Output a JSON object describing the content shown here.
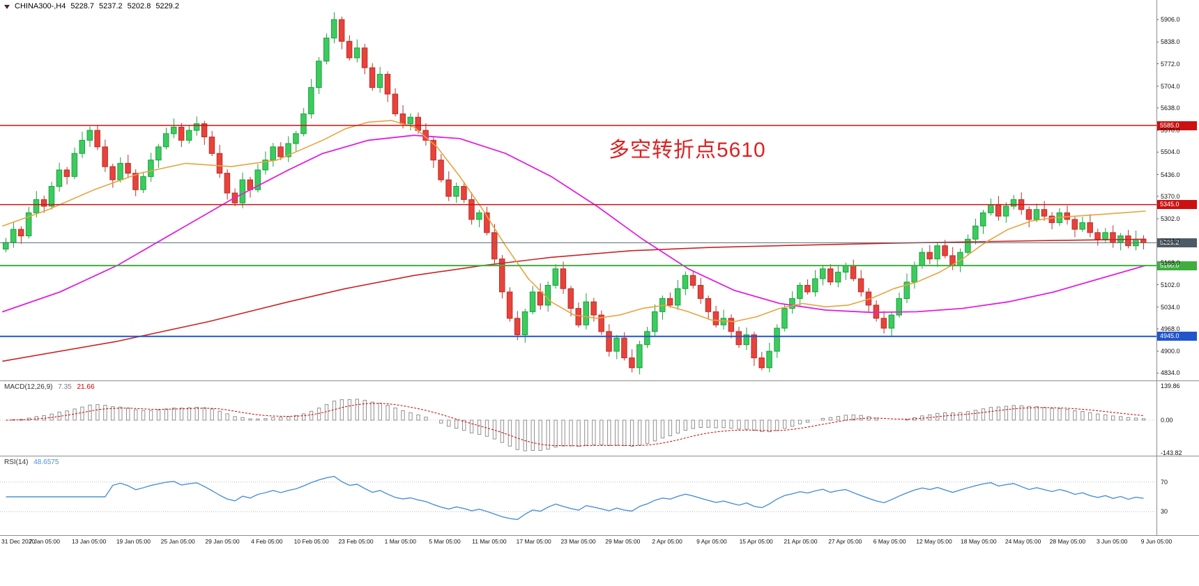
{
  "header": {
    "symbol": "CHINA300-,H4",
    "open": "5228.7",
    "high": "5237.2",
    "low": "5202.8",
    "close": "5229.2"
  },
  "colors": {
    "background": "#ffffff",
    "separator": "#8c8c8c"
  },
  "chart_data": {
    "type": "candlestick",
    "title": "CHINA300-,H4",
    "timeframe": "H4",
    "ohlc_current": {
      "open": 5228.7,
      "high": 5237.2,
      "low": 5202.8,
      "close": 5229.2
    },
    "y_axis": {
      "range": [
        4820,
        5940
      ],
      "ticks": [
        5906.0,
        5838.0,
        5772.0,
        5704.0,
        5638.0,
        5570.0,
        5504.0,
        5436.0,
        5370.0,
        5302.0,
        5234.0,
        5168.0,
        5102.0,
        5034.0,
        4968.0,
        4900.0,
        4834.0
      ]
    },
    "x_axis": {
      "labels": [
        "31 Dec 2020",
        "7 Jan 05:00",
        "13 Jan 05:00",
        "19 Jan 05:00",
        "25 Jan 05:00",
        "29 Jan 05:00",
        "4 Feb 05:00",
        "10 Feb 05:00",
        "23 Feb 05:00",
        "1 Mar 05:00",
        "5 Mar 05:00",
        "11 Mar 05:00",
        "17 Mar 05:00",
        "23 Mar 05:00",
        "29 Mar 05:00",
        "2 Apr 05:00",
        "9 Apr 05:00",
        "15 Apr 05:00",
        "21 Apr 05:00",
        "27 Apr 05:00",
        "6 May 05:00",
        "12 May 05:00",
        "18 May 05:00",
        "24 May 05:00",
        "28 May 05:00",
        "3 Jun 05:00",
        "9 Jun 05:00"
      ]
    },
    "series": {
      "first_open": 5210,
      "closes": [
        5230,
        5270,
        5250,
        5320,
        5360,
        5340,
        5400,
        5450,
        5430,
        5500,
        5540,
        5570,
        5520,
        5460,
        5420,
        5470,
        5440,
        5390,
        5430,
        5480,
        5520,
        5560,
        5580,
        5540,
        5570,
        5590,
        5550,
        5500,
        5440,
        5380,
        5350,
        5420,
        5390,
        5450,
        5480,
        5520,
        5490,
        5530,
        5560,
        5620,
        5700,
        5780,
        5850,
        5906,
        5840,
        5790,
        5820,
        5760,
        5700,
        5740,
        5680,
        5620,
        5590,
        5610,
        5570,
        5540,
        5480,
        5420,
        5370,
        5400,
        5360,
        5300,
        5320,
        5260,
        5180,
        5080,
        5000,
        4950,
        5020,
        5080,
        5040,
        5100,
        5150,
        5090,
        5030,
        4980,
        5050,
        5010,
        4960,
        4900,
        4940,
        4880,
        4850,
        4920,
        4960,
        5020,
        5060,
        5040,
        5090,
        5130,
        5100,
        5060,
        5020,
        4980,
        5000,
        4960,
        4920,
        4950,
        4880,
        4850,
        4900,
        4970,
        5030,
        5060,
        5100,
        5080,
        5120,
        5150,
        5110,
        5140,
        5160,
        5120,
        5080,
        5040,
        5000,
        4970,
        5010,
        5060,
        5110,
        5160,
        5200,
        5180,
        5220,
        5190,
        5160,
        5200,
        5240,
        5280,
        5320,
        5345,
        5310,
        5340,
        5360,
        5330,
        5300,
        5330,
        5310,
        5290,
        5320,
        5300,
        5270,
        5290,
        5260,
        5240,
        5260,
        5230,
        5250,
        5220,
        5240,
        5229
      ],
      "wick_pattern": [
        [
          14,
          10
        ],
        [
          22,
          16
        ],
        [
          9,
          24
        ],
        [
          18,
          8
        ],
        [
          26,
          14
        ],
        [
          12,
          20
        ]
      ],
      "up_color": "#3dcb5f",
      "up_stroke": "#18a33a",
      "down_color": "#e8423a",
      "down_stroke": "#bb2f28"
    },
    "overlays": {
      "levels": [
        {
          "price": 5585.0,
          "label": "5585.0",
          "color": "#cc1111",
          "width": 1.5
        },
        {
          "price": 5345.0,
          "label": "5345.0",
          "color": "#cc1111",
          "width": 1.5
        },
        {
          "price": 5160.0,
          "label": "5160.0",
          "color": "#3fae3f",
          "width": 2
        },
        {
          "price": 4945.0,
          "label": "4945.0",
          "color": "#2255cc",
          "width": 2
        }
      ],
      "moving_averages": [
        {
          "name": "ma-slow-red",
          "color": "#cc2222",
          "width": 1.6,
          "points": [
            [
              0,
              4870
            ],
            [
              0.1,
              4930
            ],
            [
              0.18,
              4990
            ],
            [
              0.25,
              5050
            ],
            [
              0.3,
              5090
            ],
            [
              0.36,
              5130
            ],
            [
              0.42,
              5160
            ],
            [
              0.48,
              5185
            ],
            [
              0.55,
              5205
            ],
            [
              0.62,
              5215
            ],
            [
              0.7,
              5222
            ],
            [
              0.78,
              5228
            ],
            [
              0.85,
              5232
            ],
            [
              0.92,
              5236
            ],
            [
              1,
              5240
            ]
          ]
        },
        {
          "name": "ma-mid-magenta",
          "color": "#e11ee1",
          "width": 1.8,
          "points": [
            [
              0,
              5020
            ],
            [
              0.05,
              5080
            ],
            [
              0.1,
              5160
            ],
            [
              0.15,
              5260
            ],
            [
              0.2,
              5360
            ],
            [
              0.25,
              5450
            ],
            [
              0.28,
              5500
            ],
            [
              0.32,
              5540
            ],
            [
              0.36,
              5555
            ],
            [
              0.4,
              5545
            ],
            [
              0.44,
              5500
            ],
            [
              0.48,
              5430
            ],
            [
              0.52,
              5340
            ],
            [
              0.56,
              5240
            ],
            [
              0.6,
              5150
            ],
            [
              0.64,
              5085
            ],
            [
              0.68,
              5045
            ],
            [
              0.72,
              5025
            ],
            [
              0.76,
              5018
            ],
            [
              0.8,
              5020
            ],
            [
              0.84,
              5030
            ],
            [
              0.88,
              5050
            ],
            [
              0.92,
              5080
            ],
            [
              0.96,
              5120
            ],
            [
              1,
              5160
            ]
          ]
        },
        {
          "name": "ma-fast-orange",
          "color": "#e8a33d",
          "width": 1.6,
          "points": [
            [
              0,
              5280
            ],
            [
              0.04,
              5330
            ],
            [
              0.08,
              5390
            ],
            [
              0.12,
              5440
            ],
            [
              0.16,
              5470
            ],
            [
              0.2,
              5460
            ],
            [
              0.24,
              5480
            ],
            [
              0.28,
              5540
            ],
            [
              0.3,
              5575
            ],
            [
              0.32,
              5595
            ],
            [
              0.34,
              5600
            ],
            [
              0.36,
              5580
            ],
            [
              0.38,
              5520
            ],
            [
              0.4,
              5430
            ],
            [
              0.42,
              5330
            ],
            [
              0.44,
              5220
            ],
            [
              0.46,
              5120
            ],
            [
              0.48,
              5050
            ],
            [
              0.5,
              5010
            ],
            [
              0.52,
              5000
            ],
            [
              0.54,
              5010
            ],
            [
              0.56,
              5030
            ],
            [
              0.58,
              5040
            ],
            [
              0.6,
              5020
            ],
            [
              0.62,
              4995
            ],
            [
              0.64,
              4990
            ],
            [
              0.66,
              5005
            ],
            [
              0.68,
              5030
            ],
            [
              0.7,
              5045
            ],
            [
              0.72,
              5035
            ],
            [
              0.74,
              5040
            ],
            [
              0.76,
              5060
            ],
            [
              0.78,
              5090
            ],
            [
              0.8,
              5110
            ],
            [
              0.82,
              5140
            ],
            [
              0.84,
              5180
            ],
            [
              0.86,
              5230
            ],
            [
              0.88,
              5270
            ],
            [
              0.9,
              5295
            ],
            [
              0.92,
              5305
            ],
            [
              0.94,
              5310
            ],
            [
              0.96,
              5315
            ],
            [
              0.98,
              5320
            ],
            [
              1,
              5325
            ]
          ]
        }
      ]
    },
    "current_price": {
      "value": 5229.2,
      "label": "5229.2",
      "line_color": "#5a6a78",
      "tag_color": "#4e5a66"
    },
    "annotations": [
      {
        "text": "多空转折点5610",
        "color": "#e01f1f",
        "price": 5530,
        "x_frac": 0.53
      }
    ],
    "indicators": {
      "macd": {
        "label": "MACD(12,26,9)",
        "value_main": "7.35",
        "value_signal": "21.66",
        "fast": 12,
        "slow": 26,
        "signal_period": 9,
        "axis": [
          "139.86",
          "0.00",
          "-143.82"
        ],
        "hist_stroke": "#8f8f8f",
        "signal_color": "#cc0000"
      },
      "rsi": {
        "label": "RSI(14)",
        "value": "48.6575",
        "levels": [
          70,
          30
        ],
        "axis": [
          "70",
          "30"
        ],
        "line_color": "#4a90d9"
      }
    }
  }
}
